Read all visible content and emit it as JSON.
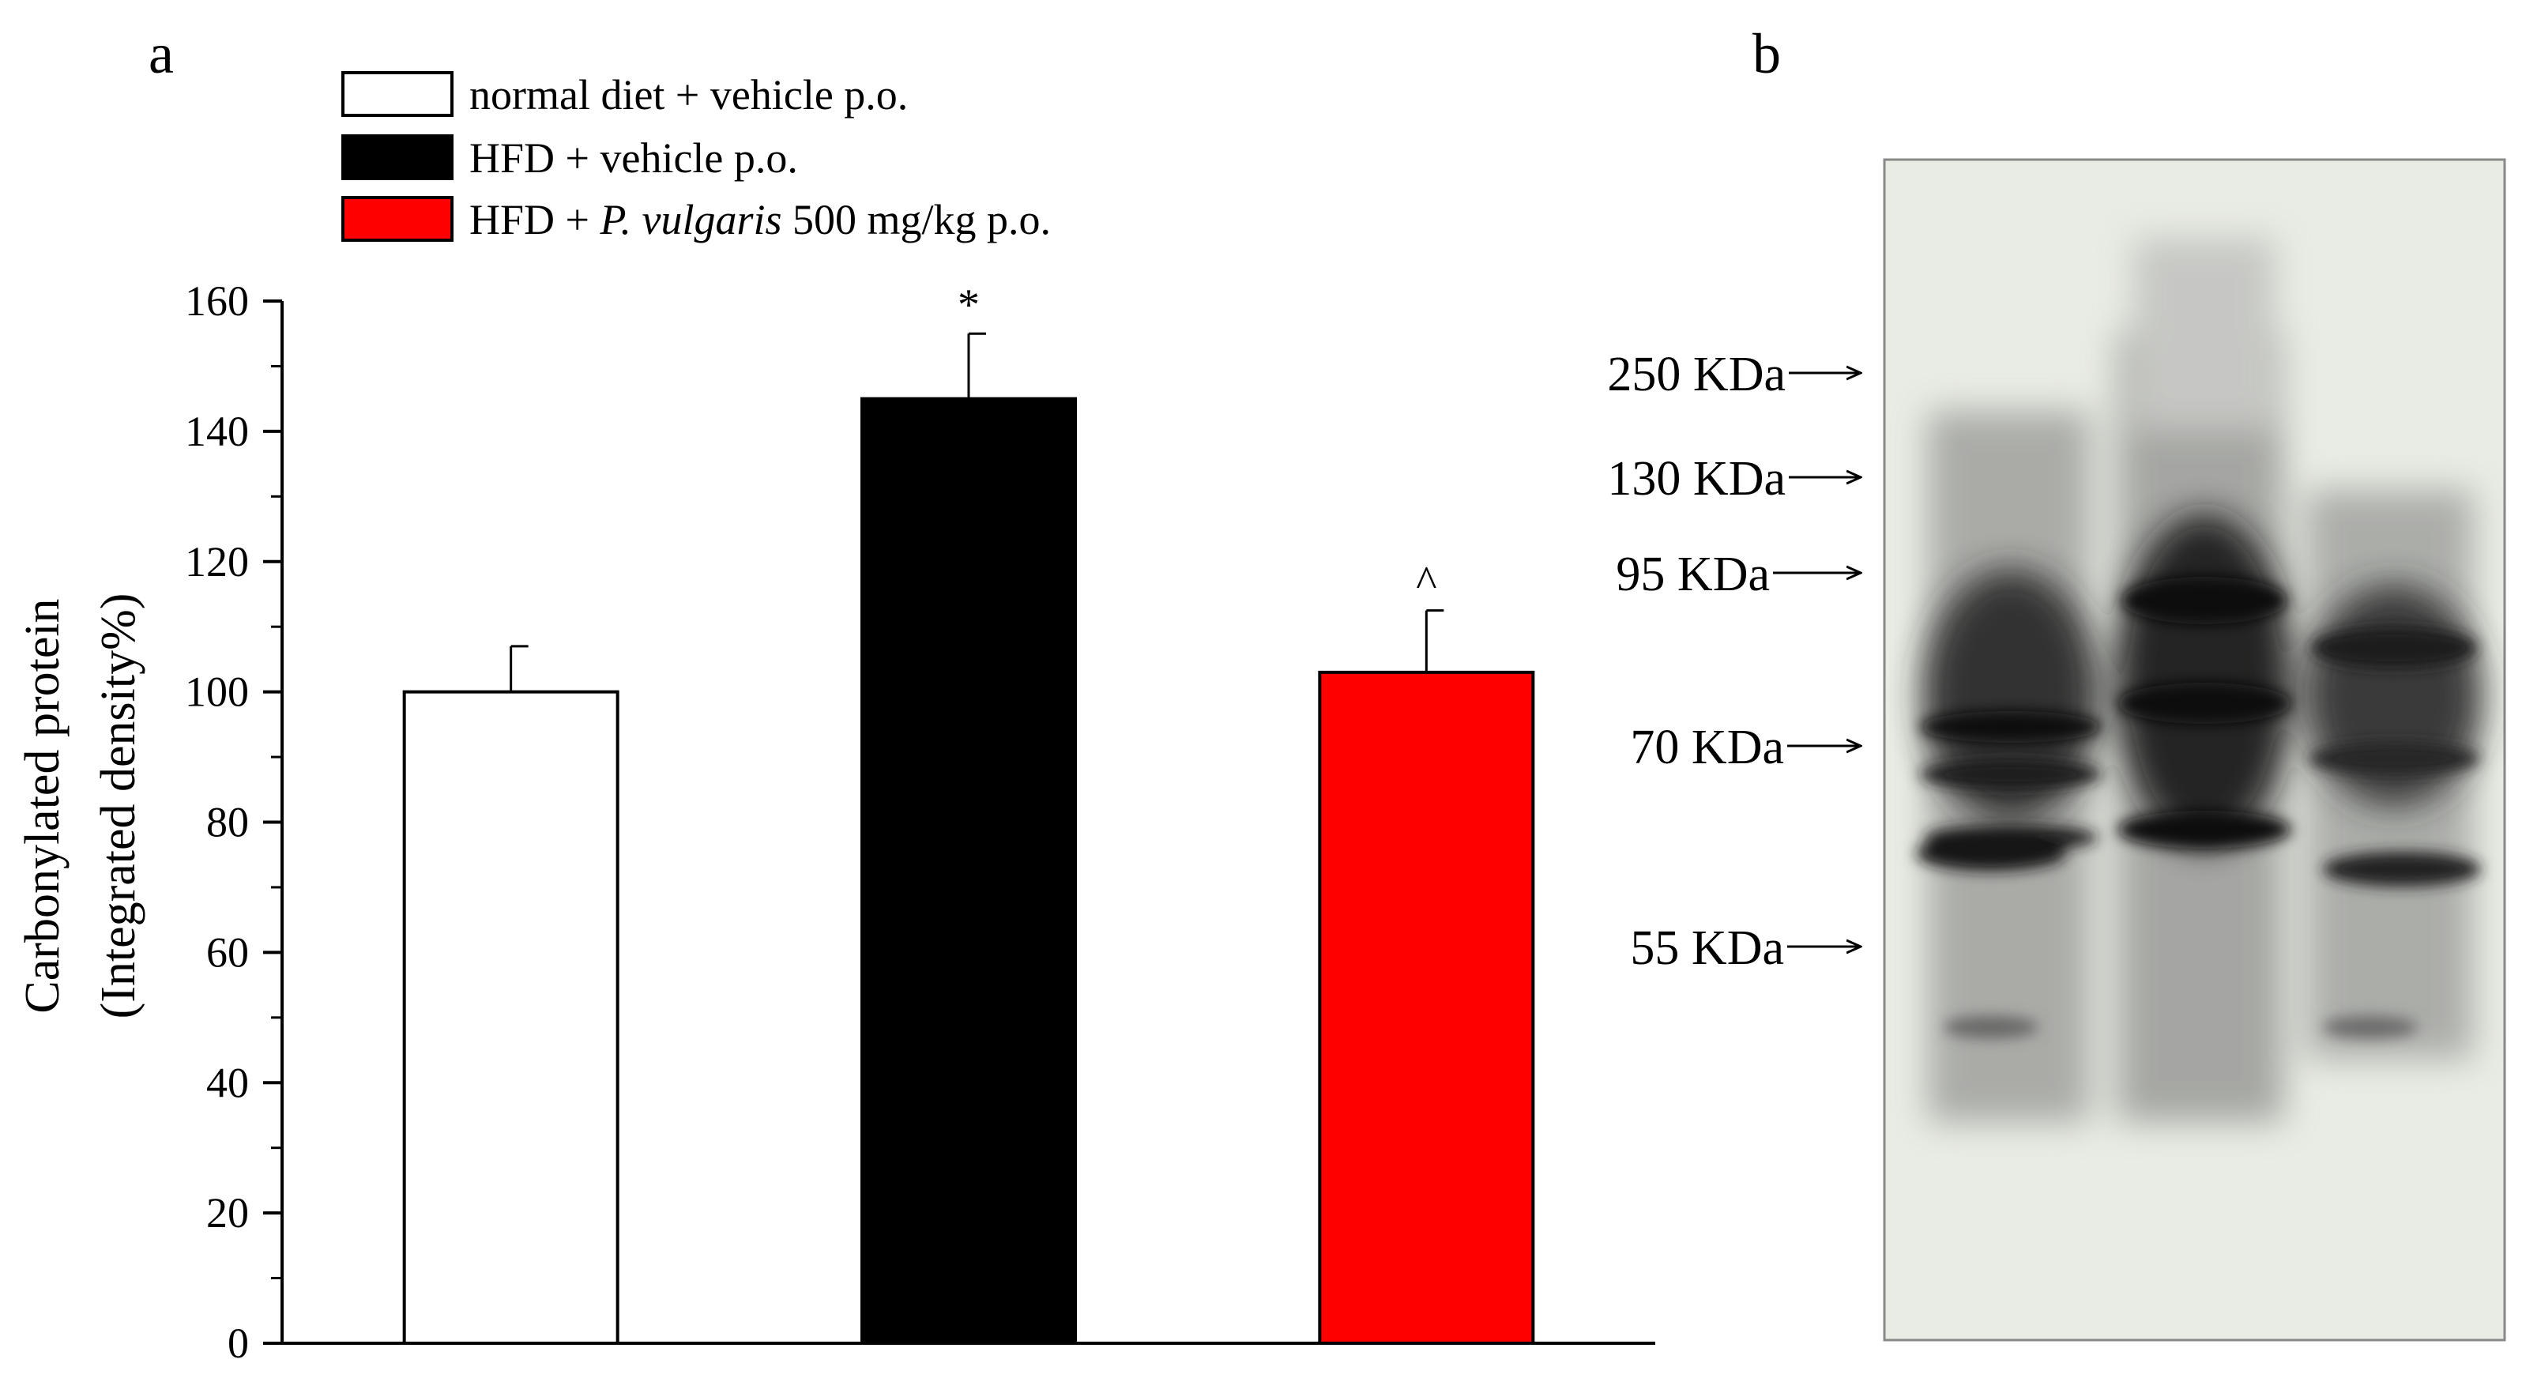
{
  "panels": {
    "a": "a",
    "b": "b"
  },
  "chart_data": {
    "type": "bar",
    "title": "",
    "xlabel": "",
    "ylabel_line1": "Carbonylated protein",
    "ylabel_line2": "(Integrated density%)",
    "ylim": [
      0,
      160
    ],
    "yticks": [
      "0",
      "20",
      "40",
      "60",
      "80",
      "100",
      "120",
      "140",
      "160"
    ],
    "categories": [
      "normal diet + vehicle p.o.",
      "HFD + vehicle p.o.",
      "HFD + P. vulgaris 500 mg/kg p.o."
    ],
    "values": [
      100,
      145,
      103
    ],
    "errors": [
      7,
      10,
      9.5
    ],
    "colors": [
      "#ffffff",
      "#000000",
      "#ff0000"
    ],
    "significance": [
      "",
      "*",
      "^"
    ],
    "legend": {
      "placement": "top-left",
      "items": [
        {
          "parts": [
            "normal diet + vehicle p.o."
          ],
          "color": "#ffffff"
        },
        {
          "parts": [
            "HFD + vehicle p.o."
          ],
          "color": "#000000"
        },
        {
          "parts": [
            "HFD + ",
            "P. vulgaris",
            " 500 mg/kg p.o."
          ],
          "color": "#ff0000"
        }
      ]
    }
  },
  "blot": {
    "markers": [
      "250 KDa",
      "130 KDa",
      "95 KDa",
      "70 KDa",
      "55 KDa"
    ],
    "lanes": 3,
    "background": "#e9ece4"
  }
}
